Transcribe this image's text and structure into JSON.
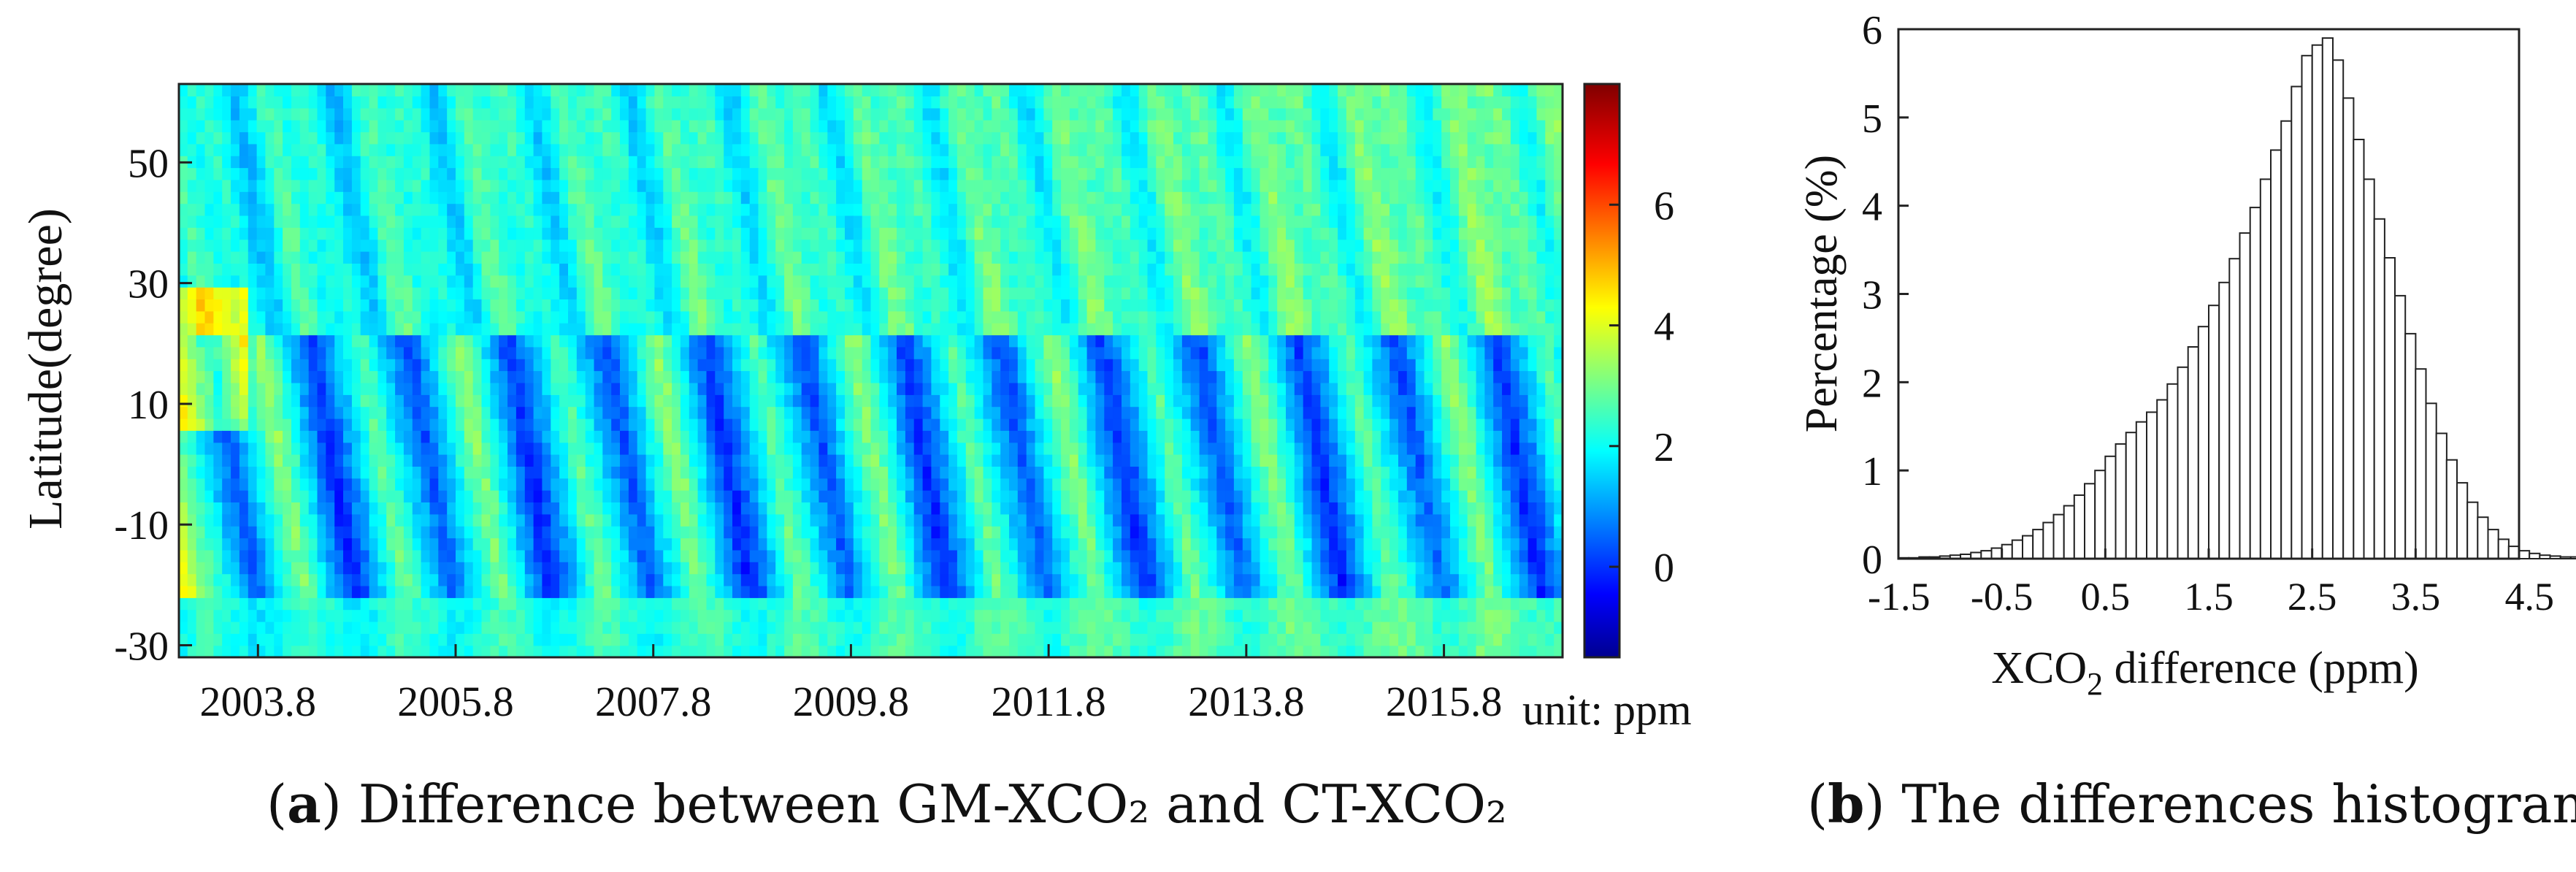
{
  "figure": {
    "caption_a": {
      "label": "a",
      "text": "Difference between GM-XCO₂ and CT-XCO₂"
    },
    "caption_b": {
      "label": "b",
      "text": "The differences histogram"
    }
  },
  "chart_data": [
    {
      "id": "a",
      "type": "heatmap",
      "title": "",
      "xlabel": "",
      "ylabel": "Latitude(degree)",
      "x_tick_labels": [
        "2003.8",
        "2005.8",
        "2007.8",
        "2009.8",
        "2011.8",
        "2013.8",
        "2015.8"
      ],
      "x_tick_values": [
        2003.8,
        2005.8,
        2007.8,
        2009.8,
        2011.8,
        2013.8,
        2015.8
      ],
      "xlim": [
        2003.0,
        2017.0
      ],
      "y_tick_labels": [
        "50",
        "30",
        "10",
        "-10",
        "-30"
      ],
      "y_tick_values": [
        50,
        30,
        10,
        -10,
        -30
      ],
      "ylim": [
        -32,
        63
      ],
      "colorbar": {
        "range": [
          -1.5,
          8
        ],
        "tick_labels": [
          "0",
          "2",
          "4",
          "6"
        ],
        "tick_values": [
          0,
          2,
          4,
          6
        ],
        "unit_label": "unit: ppm",
        "colormap": "jet"
      },
      "description_of_values": "XCO2 difference (ppm) by time (x) and latitude (y); seasonal triangular pattern with lows near 0 ppm in tropics and highs near 4-6 ppm"
    },
    {
      "id": "b",
      "type": "bar",
      "title": "",
      "xlabel": "XCO",
      "xlabel_subscript": "2",
      "xlabel_suffix": " difference (ppm)",
      "ylabel": "Percentage (%)",
      "xlim": [
        -1.5,
        4.5
      ],
      "ylim": [
        0,
        6
      ],
      "x_tick_labels": [
        "-1.5",
        "-0.5",
        "0.5",
        "1.5",
        "2.5",
        "3.5",
        "4.5"
      ],
      "x_tick_values": [
        -1.5,
        -0.5,
        0.5,
        1.5,
        2.5,
        3.5,
        4.5
      ],
      "y_tick_labels": [
        "0",
        "1",
        "2",
        "3",
        "4",
        "5",
        "6"
      ],
      "y_tick_values": [
        0,
        1,
        2,
        3,
        4,
        5,
        6
      ],
      "bin_width": 0.1,
      "bin_start": -1.5,
      "values": [
        0.01,
        0.01,
        0.02,
        0.02,
        0.03,
        0.04,
        0.05,
        0.07,
        0.09,
        0.12,
        0.16,
        0.21,
        0.26,
        0.33,
        0.41,
        0.5,
        0.6,
        0.72,
        0.85,
        1.0,
        1.16,
        1.3,
        1.43,
        1.55,
        1.66,
        1.8,
        1.98,
        2.17,
        2.4,
        2.63,
        2.87,
        3.13,
        3.4,
        3.69,
        3.98,
        4.3,
        4.63,
        4.96,
        5.35,
        5.7,
        5.82,
        5.9,
        5.65,
        5.22,
        4.75,
        4.3,
        3.85,
        3.41,
        2.98,
        2.55,
        2.15,
        1.76,
        1.42,
        1.12,
        0.86,
        0.64,
        0.47,
        0.33,
        0.22,
        0.14,
        0.09,
        0.06,
        0.04,
        0.03,
        0.02,
        0.02,
        0.01,
        0.01,
        0.01,
        0.01
      ]
    }
  ]
}
